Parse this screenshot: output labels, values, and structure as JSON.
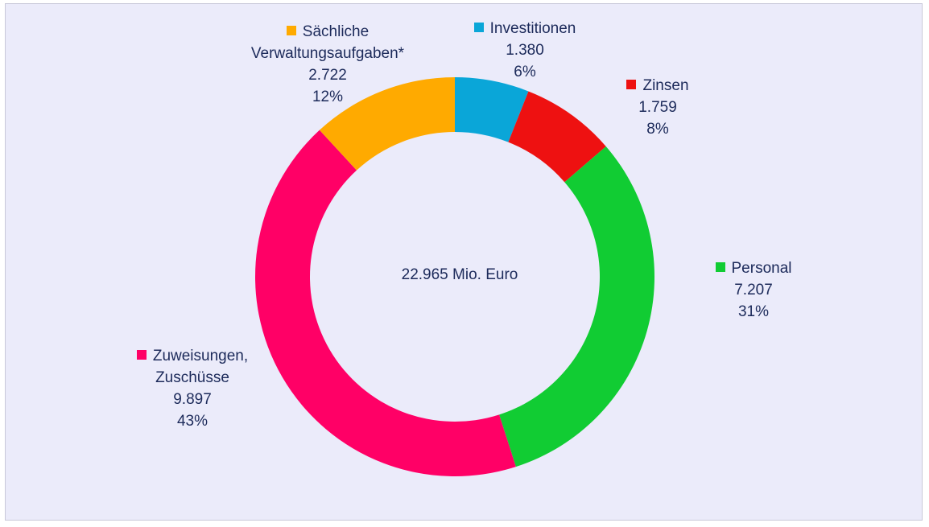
{
  "chart_data": {
    "type": "donut",
    "center_label": "22.965 Mio. Euro",
    "categories": [
      "Investitionen",
      "Zinsen",
      "Personal",
      "Zuweisungen, Zuschüsse",
      "Sächliche Verwaltungsaufgaben*"
    ],
    "values": [
      1380,
      1759,
      7207,
      9897,
      2722
    ],
    "value_labels": [
      "1.380",
      "1.759",
      "7.207",
      "9.897",
      "2.722"
    ],
    "share_labels": [
      "6%",
      "8%",
      "31%",
      "43%",
      "12%"
    ],
    "colors": [
      "#0aa6d8",
      "#ee1111",
      "#11cc33",
      "#ff0066",
      "#ffaa00"
    ]
  }
}
